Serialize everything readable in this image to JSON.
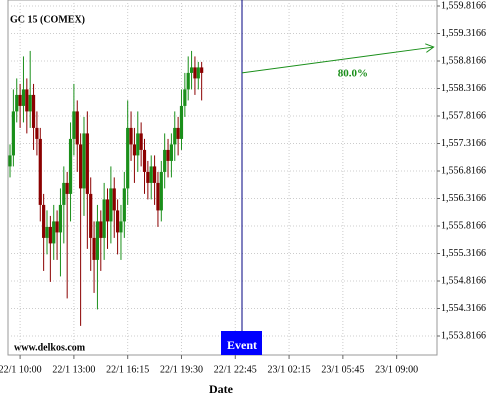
{
  "chart_data": {
    "type": "candlestick",
    "title": "GC 15 (COMEX)",
    "watermark": "www.delkos.com",
    "x_label": "Date",
    "up_color": "#1a8f1a",
    "down_color": "#8b0000",
    "grid": true,
    "open": [
      1556.9,
      1557.1,
      1557.9,
      1558.2,
      1558.0,
      1558.3,
      1557.9,
      1558.2,
      1557.6,
      1557.4,
      1556.2,
      1555.6,
      1555.8,
      1555.5,
      1555.9,
      1555.7,
      1556.2,
      1556.6,
      1556.4,
      1557.4,
      1557.9,
      1557.3,
      1556.5,
      1557.5,
      1556.4,
      1555.6,
      1555.2,
      1555.9,
      1555.6,
      1556.3,
      1555.9,
      1556.5,
      1556.1,
      1555.7,
      1555.9,
      1556.5,
      1557.6,
      1557.3,
      1557.1,
      1557.5,
      1557.2,
      1556.8,
      1556.6,
      1556.9,
      1556.6,
      1556.1,
      1556.8,
      1557.2,
      1557.0,
      1557.3,
      1557.6,
      1557.4,
      1558.0,
      1558.3,
      1558.6,
      1558.7,
      1558.5,
      1558.7
    ],
    "high": [
      1557.3,
      1558.3,
      1558.5,
      1558.4,
      1558.9,
      1558.5,
      1559.0,
      1558.4,
      1557.9,
      1557.6,
      1556.4,
      1556.1,
      1556.0,
      1556.2,
      1556.1,
      1556.5,
      1556.9,
      1556.8,
      1557.7,
      1558.4,
      1558.1,
      1557.5,
      1557.8,
      1557.9,
      1556.7,
      1555.9,
      1556.2,
      1556.1,
      1556.6,
      1556.5,
      1556.9,
      1556.7,
      1556.3,
      1556.2,
      1556.8,
      1558.1,
      1557.9,
      1557.6,
      1557.9,
      1557.7,
      1557.4,
      1557.0,
      1557.1,
      1557.1,
      1556.8,
      1557.0,
      1557.5,
      1557.4,
      1557.5,
      1557.9,
      1557.8,
      1558.3,
      1558.6,
      1558.9,
      1559.0,
      1558.9,
      1558.8,
      1558.8
    ],
    "low": [
      1556.7,
      1556.9,
      1557.7,
      1557.6,
      1557.7,
      1557.5,
      1557.6,
      1557.2,
      1557.1,
      1555.9,
      1555.0,
      1555.3,
      1554.8,
      1555.2,
      1555.2,
      1554.9,
      1555.5,
      1554.5,
      1555.9,
      1557.1,
      1556.8,
      1554.0,
      1556.0,
      1555.4,
      1555.0,
      1554.6,
      1554.3,
      1555.0,
      1555.2,
      1555.4,
      1555.5,
      1555.6,
      1555.3,
      1555.2,
      1555.6,
      1556.2,
      1557.0,
      1556.6,
      1556.8,
      1556.9,
      1556.4,
      1556.3,
      1556.3,
      1556.2,
      1555.8,
      1555.9,
      1556.5,
      1556.7,
      1556.7,
      1557.0,
      1557.1,
      1557.2,
      1557.8,
      1558.1,
      1558.3,
      1558.2,
      1558.3,
      1558.1
    ],
    "close": [
      1557.1,
      1557.9,
      1558.2,
      1558.0,
      1558.3,
      1557.9,
      1558.2,
      1557.6,
      1557.4,
      1556.2,
      1555.6,
      1555.8,
      1555.5,
      1555.9,
      1555.7,
      1556.2,
      1556.6,
      1556.4,
      1557.4,
      1557.9,
      1557.3,
      1556.5,
      1557.5,
      1556.4,
      1555.6,
      1555.2,
      1555.9,
      1555.6,
      1556.3,
      1555.9,
      1556.5,
      1556.1,
      1555.7,
      1555.9,
      1556.5,
      1557.6,
      1557.3,
      1557.1,
      1557.5,
      1557.2,
      1556.8,
      1556.6,
      1556.9,
      1556.6,
      1556.1,
      1556.8,
      1557.2,
      1557.0,
      1557.3,
      1557.6,
      1557.4,
      1558.0,
      1558.3,
      1558.6,
      1558.7,
      1558.5,
      1558.7,
      1558.6
    ],
    "xlim": [
      -0.6,
      127
    ],
    "xticks": [
      {
        "value": 3,
        "label": "22/1 10:00"
      },
      {
        "value": 19,
        "label": "22/1 13:00"
      },
      {
        "value": 35,
        "label": "22/1 16:15"
      },
      {
        "value": 51,
        "label": "22/1 19:30"
      },
      {
        "value": 67,
        "label": "22/1 22:45"
      },
      {
        "value": 83,
        "label": "23/1 02:15"
      },
      {
        "value": 99,
        "label": "23/1 05:45"
      },
      {
        "value": 115,
        "label": "23/1 09:00"
      }
    ],
    "ylim": [
      1553.4711,
      1559.9257
    ],
    "yticks": [
      {
        "value": 1553.8166,
        "label": "1,553.8166"
      },
      {
        "value": 1554.3166,
        "label": "1,554.3166"
      },
      {
        "value": 1554.8166,
        "label": "1,554.8166"
      },
      {
        "value": 1555.3166,
        "label": "1,555.3166"
      },
      {
        "value": 1555.8166,
        "label": "1,555.8166"
      },
      {
        "value": 1556.3166,
        "label": "1,556.3166"
      },
      {
        "value": 1556.8166,
        "label": "1,556.8166"
      },
      {
        "value": 1557.3166,
        "label": "1,557.3166"
      },
      {
        "value": 1557.8166,
        "label": "1,557.8166"
      },
      {
        "value": 1558.3166,
        "label": "1,558.3166"
      },
      {
        "value": 1558.8166,
        "label": "1,558.8166"
      },
      {
        "value": 1559.3166,
        "label": "1,559.3166"
      },
      {
        "value": 1559.8166,
        "label": "1,559.8166"
      }
    ],
    "event": {
      "label": "Event",
      "x": 69
    },
    "projection": {
      "label": "80.0%",
      "x": [
        69,
        126
      ],
      "y": [
        1558.6,
        1559.07
      ],
      "color": "#1a8f1a"
    }
  }
}
